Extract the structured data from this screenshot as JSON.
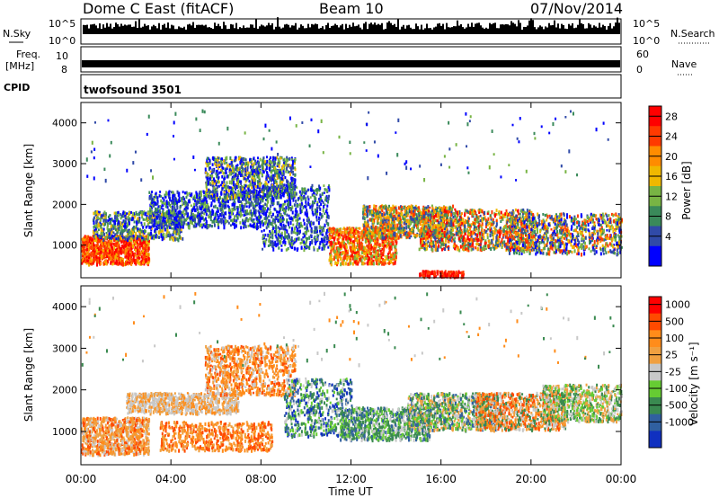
{
  "header": {
    "title": "Dome C East (fitACF)",
    "beam": "Beam 10",
    "date": "07/Nov/2014"
  },
  "top_panels": {
    "nsky_label": "N.Sky",
    "nsky_ticks": [
      "10^5",
      "10^0"
    ],
    "nsearch_label": "N.Search",
    "nsearch_ticks": [
      "10^5",
      "10^0"
    ],
    "freq_label": "Freq.",
    "freq_unit": "[MHz]",
    "freq_ticks": [
      "10",
      "8"
    ],
    "nave_label": "Nave",
    "nave_ticks": [
      "60",
      "0"
    ],
    "cpid_label": "CPID",
    "cpid_value": "twofsound 3501"
  },
  "chart_data": [
    {
      "type": "heatmap",
      "name": "power",
      "ylabel": "Slant Range [km]",
      "xlabel": "",
      "ylim": [
        200,
        4500
      ],
      "xlim": [
        0,
        24
      ],
      "y_ticks": [
        "4000",
        "3000",
        "2000",
        "1000"
      ],
      "colorbar_label": "Power [dB]",
      "colorbar_ticks": [
        "28",
        "24",
        "20",
        "16",
        "12",
        "8",
        "4"
      ],
      "colorbar_colors": [
        "#ff0000",
        "#ff3a00",
        "#ff8c00",
        "#f0b800",
        "#78b444",
        "#3a8a5a",
        "#304aa8",
        "#0000ff"
      ]
    },
    {
      "type": "heatmap",
      "name": "velocity",
      "ylabel": "Slant Range [km]",
      "xlabel": "Time UT",
      "ylim": [
        200,
        4500
      ],
      "xlim": [
        0,
        24
      ],
      "y_ticks": [
        "4000",
        "3000",
        "2000",
        "1000"
      ],
      "x_ticks": [
        "00:00",
        "04:00",
        "08:00",
        "12:00",
        "16:00",
        "20:00",
        "00:00"
      ],
      "colorbar_label": "Velocity [m s⁻¹]",
      "colorbar_ticks": [
        "1000",
        "500",
        "100",
        "25",
        "-25",
        "-100",
        "-500",
        "-1000"
      ],
      "colorbar_colors": [
        "#ff0000",
        "#ff4a00",
        "#ff8c1a",
        "#f0a040",
        "#c8c8c8",
        "#66cc33",
        "#3a8a50",
        "#3060a0",
        "#1030c0"
      ]
    }
  ]
}
